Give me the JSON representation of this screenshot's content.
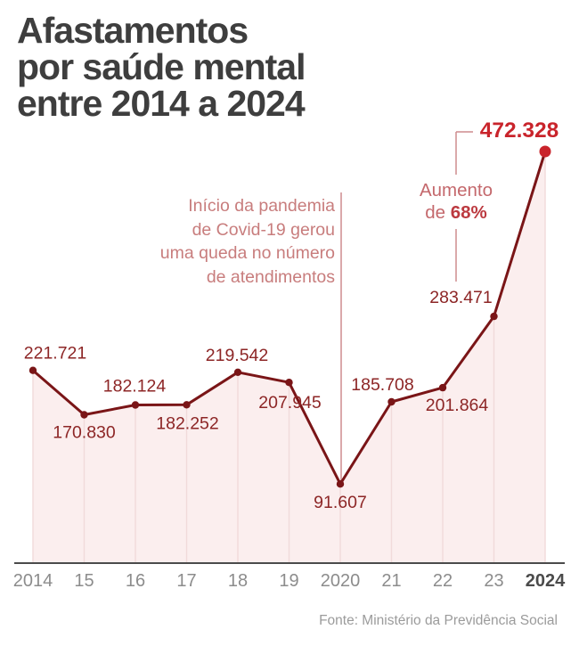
{
  "title": {
    "lines": [
      "Afastamentos",
      "por saúde mental",
      "entre 2014 a 2024"
    ]
  },
  "chart_data": {
    "type": "line",
    "title": "Afastamentos por saúde mental entre 2014 a 2024",
    "x": [
      "2014",
      "2015",
      "2016",
      "2017",
      "2018",
      "2019",
      "2020",
      "2021",
      "2022",
      "2023",
      "2024"
    ],
    "x_tick_labels": [
      "2014",
      "15",
      "16",
      "17",
      "18",
      "19",
      "2020",
      "21",
      "22",
      "23",
      "2024"
    ],
    "values": [
      221721,
      170830,
      182124,
      182252,
      219542,
      207945,
      91607,
      185708,
      201864,
      283471,
      472328
    ],
    "point_labels": [
      "221.721",
      "170.830",
      "182.124",
      "182.252",
      "219.542",
      "207.945",
      "91.607",
      "185.708",
      "201.864",
      "283.471",
      "472.328"
    ],
    "ylim": [
      0,
      472328
    ],
    "grid": false,
    "legend": false,
    "area_fill": true,
    "annotations": {
      "pandemic": {
        "lines": [
          "Início da pandemia",
          "de Covid-19 gerou",
          "uma queda no número",
          "de atendimentos"
        ]
      },
      "increase": {
        "line1": "Aumento",
        "line2_prefix": "de ",
        "line2_value": "68%"
      }
    },
    "colors": {
      "line": "#7a1517",
      "point": "#7a1517",
      "peak": "#c9242b",
      "area": "#fbeeee",
      "separator": "#f1dada",
      "label": "#8d2626",
      "annotation_line": "#cd8c8e",
      "axis": "#4b4b4b",
      "tick": "#8c8c8c",
      "tick_strong": "#4b4b4b"
    }
  },
  "source": "Fonte: Ministério da Previdência Social"
}
